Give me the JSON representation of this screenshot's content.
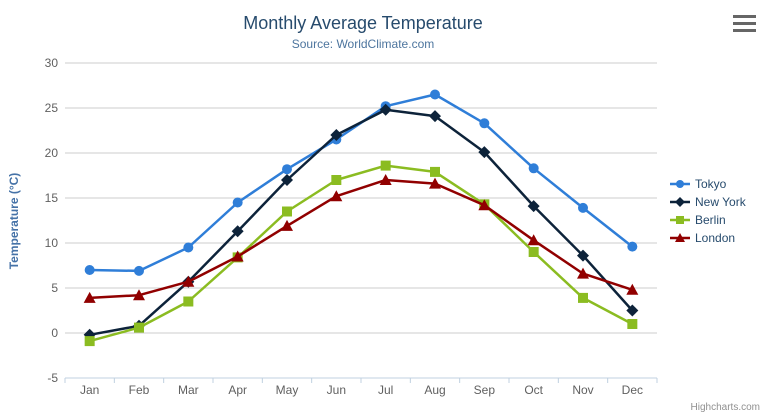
{
  "chart": {
    "title": "Monthly Average Temperature",
    "subtitle": "Source: WorldClimate.com",
    "credits": "Highcharts.com"
  },
  "ui": {
    "context_menu_icon": "hamburger-icon"
  },
  "colors": {
    "title_text": "#274b6d",
    "subtitle_text": "#4d759e",
    "axis_title_text": "#4572a7",
    "tick_label_text": "#606060",
    "legend_text": "#274b6d",
    "gridline": "#cccccc",
    "axis_line": "#c0d0e0",
    "credits_text": "#909090",
    "menu_icon": "#666666"
  },
  "chart_data": {
    "type": "line",
    "title": "Monthly Average Temperature",
    "subtitle": "Source: WorldClimate.com",
    "xlabel": "",
    "ylabel": "Temperature (°C)",
    "ylim": [
      -5,
      30
    ],
    "ytick_interval": 5,
    "ytick_labels": [
      "-5",
      "0",
      "5",
      "10",
      "15",
      "20",
      "25",
      "30"
    ],
    "grid": true,
    "legend_position": "right",
    "categories": [
      "Jan",
      "Feb",
      "Mar",
      "Apr",
      "May",
      "Jun",
      "Jul",
      "Aug",
      "Sep",
      "Oct",
      "Nov",
      "Dec"
    ],
    "series": [
      {
        "name": "Tokyo",
        "color": "#2f7ed8",
        "marker": "circle",
        "values": [
          7.0,
          6.9,
          9.5,
          14.5,
          18.2,
          21.5,
          25.2,
          26.5,
          23.3,
          18.3,
          13.9,
          9.6
        ]
      },
      {
        "name": "New York",
        "color": "#0d233a",
        "marker": "diamond",
        "values": [
          -0.2,
          0.8,
          5.7,
          11.3,
          17.0,
          22.0,
          24.8,
          24.1,
          20.1,
          14.1,
          8.6,
          2.5
        ]
      },
      {
        "name": "Berlin",
        "color": "#8bbc21",
        "marker": "square",
        "values": [
          -0.9,
          0.6,
          3.5,
          8.4,
          13.5,
          17.0,
          18.6,
          17.9,
          14.3,
          9.0,
          3.9,
          1.0
        ]
      },
      {
        "name": "London",
        "color": "#910000",
        "marker": "triangle",
        "values": [
          3.9,
          4.2,
          5.7,
          8.5,
          11.9,
          15.2,
          17.0,
          16.6,
          14.2,
          10.3,
          6.6,
          4.8
        ]
      }
    ]
  }
}
